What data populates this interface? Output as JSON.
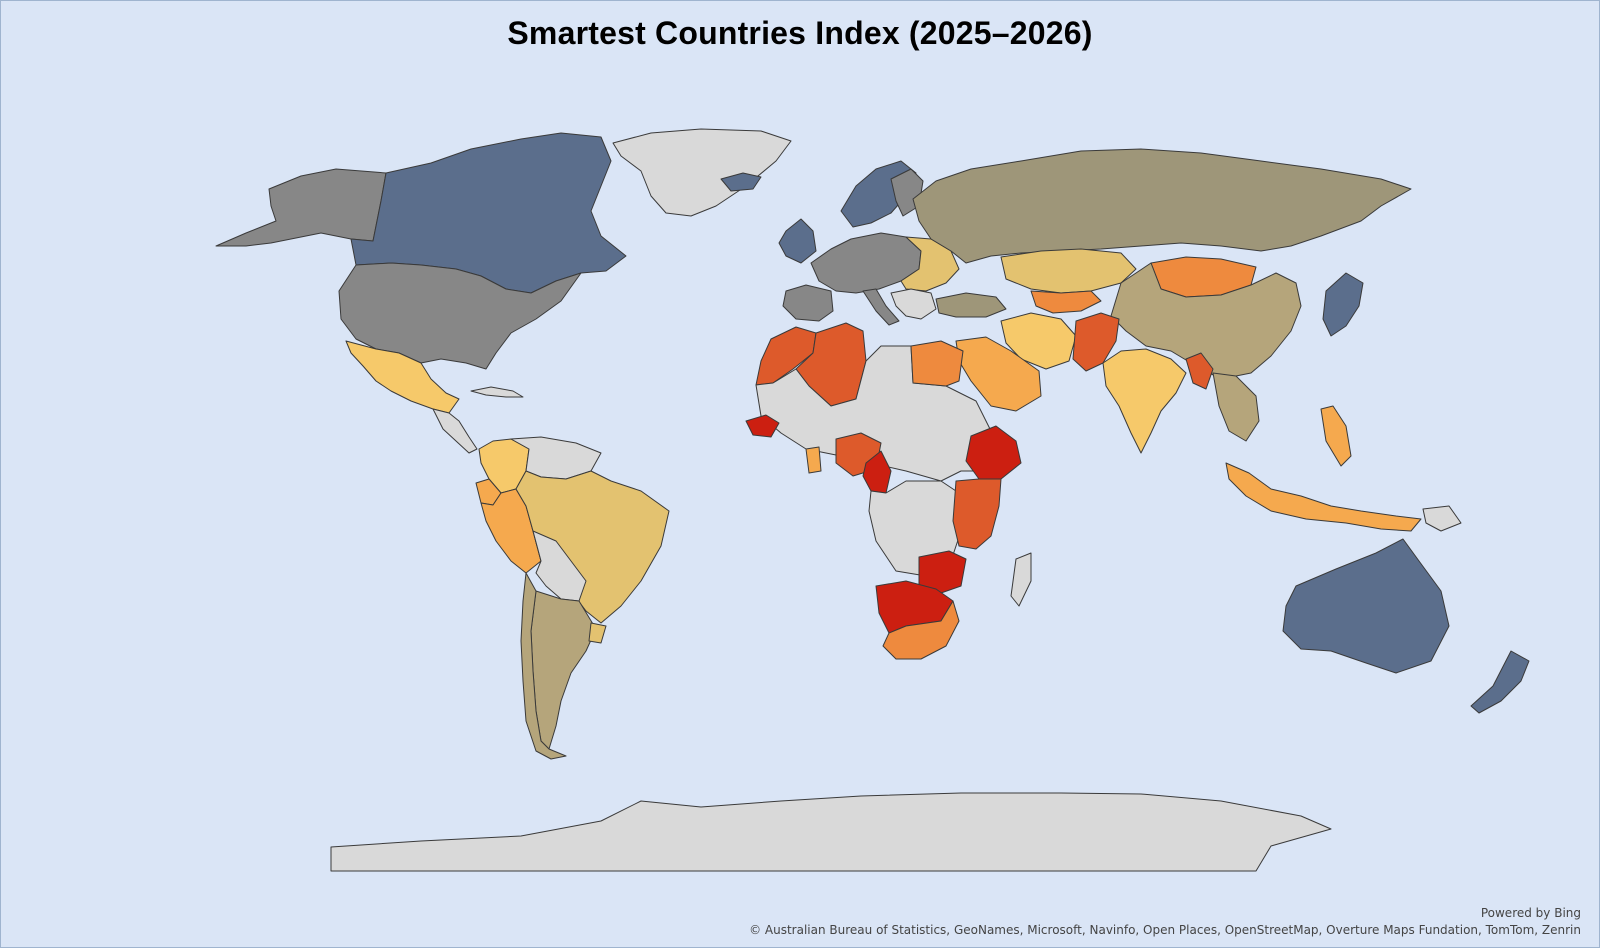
{
  "title": "Smartest Countries Index (2025–2026)",
  "credits": {
    "powered_by": "Powered by Bing",
    "copyright": "© Australian Bureau of Statistics, GeoNames, Microsoft, Navinfo, Open Places, OpenStreetMap, Overture Maps Fundation, TomTom, Zenrin"
  },
  "colors": {
    "ocean": "#dae5f6",
    "no_data": "#d9d9d9",
    "tier_blue": "#5b6e8c",
    "tier_gray": "#878787",
    "tier_khaki": "#9e9679",
    "tier_tan": "#b5a57b",
    "tier_gold": "#e3c270",
    "tier_yellow": "#f6c96a",
    "tier_light_orange": "#f5a94e",
    "tier_orange": "#ee8a3e",
    "tier_red_orange": "#dd5a2b",
    "tier_red": "#cc1f11"
  }
}
